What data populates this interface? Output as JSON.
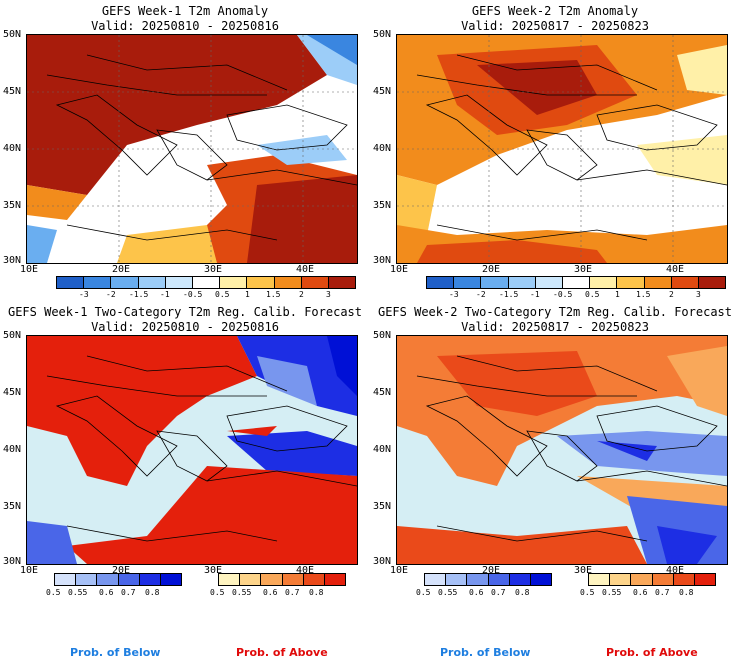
{
  "panels": [
    {
      "title": "GEFS Week-1 T2m Anomaly",
      "valid": "Valid: 20250810 - 20250816"
    },
    {
      "title": "GEFS Week-2 T2m Anomaly",
      "valid": "Valid: 20250817 - 20250823"
    },
    {
      "title": "GEFS Week-1 Two-Category T2m Reg. Calib. Forecast",
      "valid": "Valid: 20250810 - 20250816"
    },
    {
      "title": "GEFS Week-2 Two-Category T2m Reg. Calib. Forecast",
      "valid": "Valid: 20250817 - 20250823"
    }
  ],
  "lat_labels": [
    "50N",
    "45N",
    "40N",
    "35N",
    "30N"
  ],
  "lon_labels": [
    "10E",
    "20E",
    "30E",
    "40E"
  ],
  "anomaly_colorbar": {
    "labels": [
      "-3",
      "-2",
      "-1.5",
      "-1",
      "-0.5",
      "0.5",
      "1",
      "1.5",
      "2",
      "3"
    ],
    "colors": [
      "#1f5fc8",
      "#3a86e0",
      "#6aaef0",
      "#9ccdf8",
      "#cde8fc",
      "#ffffff",
      "#fff0a8",
      "#fdc44a",
      "#f28c1c",
      "#e04a10",
      "#a81c0c"
    ]
  },
  "prob_below_colorbar": {
    "labels": [
      "0.5",
      "0.55",
      "0.6",
      "0.7",
      "0.8"
    ],
    "colors": [
      "#d5e2fb",
      "#a6c0f6",
      "#7896ee",
      "#4a66e8",
      "#1d2ee4",
      "#0010d6"
    ]
  },
  "prob_above_colorbar": {
    "labels": [
      "0.5",
      "0.55",
      "0.6",
      "0.7",
      "0.8"
    ],
    "colors": [
      "#fff4c0",
      "#fdd48a",
      "#f9a85a",
      "#f47c36",
      "#ea4a1a",
      "#e4200c"
    ]
  },
  "captions": {
    "below": "Prob. of Below",
    "above": "Prob. of Above"
  }
}
